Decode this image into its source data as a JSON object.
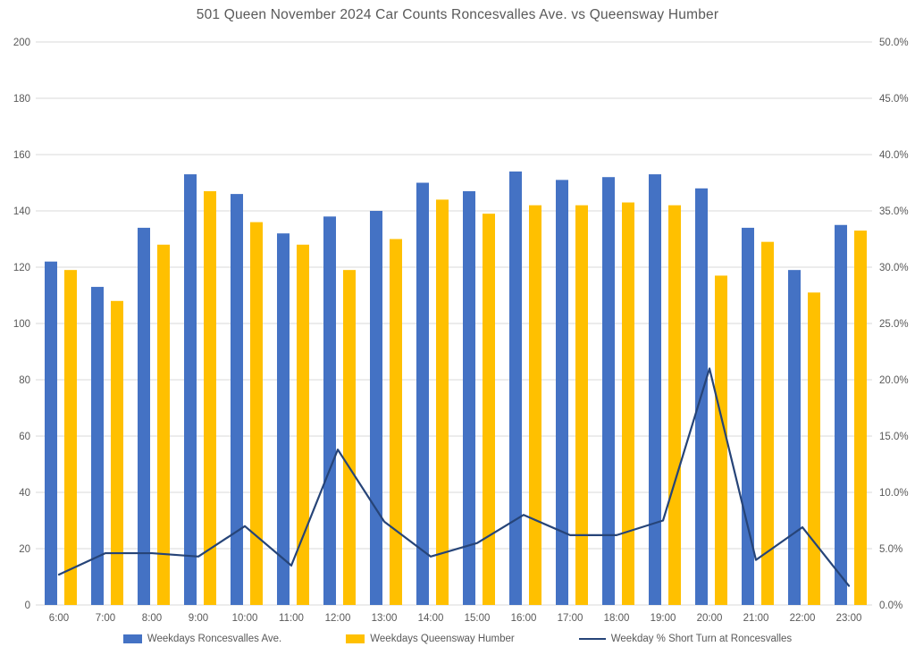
{
  "chart_data": {
    "type": "bar",
    "subtype": "combo-bar-line-dual-axis",
    "title": "501 Queen November 2024 Car Counts Roncesvalles Ave. vs Queensway Humber",
    "categories": [
      "6:00",
      "7:00",
      "8:00",
      "9:00",
      "10:00",
      "11:00",
      "12:00",
      "13:00",
      "14:00",
      "15:00",
      "16:00",
      "17:00",
      "18:00",
      "19:00",
      "20:00",
      "21:00",
      "22:00",
      "23:00"
    ],
    "series": [
      {
        "name": "Weekdays Roncesvalles Ave.",
        "type": "bar",
        "axis": "left",
        "color": "#4472C4",
        "values": [
          122,
          113,
          134,
          153,
          146,
          132,
          138,
          140,
          150,
          147,
          154,
          151,
          152,
          153,
          148,
          134,
          119,
          135
        ]
      },
      {
        "name": "Weekdays Queensway Humber",
        "type": "bar",
        "axis": "left",
        "color": "#FFC000",
        "values": [
          119,
          108,
          128,
          147,
          136,
          128,
          119,
          130,
          144,
          139,
          142,
          142,
          143,
          142,
          117,
          129,
          111,
          133
        ]
      },
      {
        "name": "Weekday % Short Turn at Roncesvalles",
        "type": "line",
        "axis": "right",
        "color": "#264478",
        "values": [
          2.7,
          4.6,
          4.6,
          4.3,
          7.0,
          3.5,
          13.8,
          7.4,
          4.3,
          5.5,
          8.0,
          6.2,
          6.2,
          7.5,
          21.0,
          4.0,
          6.9,
          1.7
        ]
      }
    ],
    "left_axis": {
      "min": 0,
      "max": 200,
      "step": 20,
      "tick_labels": [
        "0",
        "20",
        "40",
        "60",
        "80",
        "100",
        "120",
        "140",
        "160",
        "180",
        "200"
      ]
    },
    "right_axis": {
      "min": 0,
      "max": 50,
      "step": 5,
      "tick_labels": [
        "0.0%",
        "5.0%",
        "10.0%",
        "15.0%",
        "20.0%",
        "25.0%",
        "30.0%",
        "35.0%",
        "40.0%",
        "45.0%",
        "50.0%"
      ]
    },
    "grid": true,
    "legend_position": "bottom",
    "colors": {
      "gridline": "#D9D9D9",
      "axis_text": "#595959",
      "title_text": "#595959",
      "background": "#FFFFFF"
    }
  }
}
